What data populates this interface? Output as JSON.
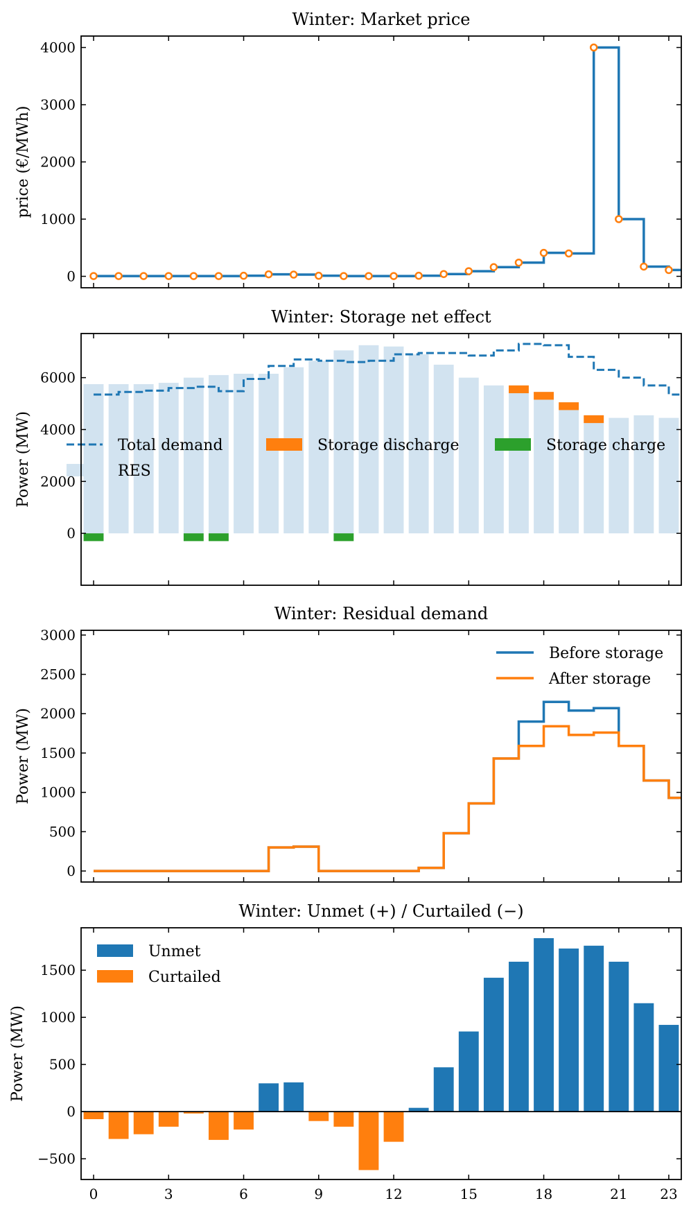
{
  "colors": {
    "blue": "#1f77b4",
    "orange": "#ff7f0e",
    "green": "#2ca02c",
    "res": "#d2e3f0"
  },
  "xticks": [
    0,
    3,
    6,
    9,
    12,
    15,
    18,
    21,
    23
  ],
  "chart_data": [
    {
      "type": "line",
      "title": "Winter: Market price",
      "xlabel": "",
      "ylabel": "price (€/MWh)",
      "xlim": [
        -0.5,
        23.5
      ],
      "ylim": [
        -200,
        4200
      ],
      "yticks": [
        0,
        1000,
        2000,
        3000,
        4000
      ],
      "grid": false,
      "step": "post",
      "x": [
        0,
        1,
        2,
        3,
        4,
        5,
        6,
        7,
        8,
        9,
        10,
        11,
        12,
        13,
        14,
        15,
        16,
        17,
        18,
        19,
        20,
        21,
        22,
        23
      ],
      "series": [
        {
          "values": [
            5,
            5,
            5,
            5,
            5,
            5,
            10,
            35,
            30,
            10,
            5,
            5,
            5,
            10,
            40,
            90,
            160,
            240,
            410,
            400,
            4000,
            1000,
            170,
            110
          ]
        }
      ]
    },
    {
      "type": "bar",
      "title": "Winter: Storage net effect",
      "xlabel": "",
      "ylabel": "Power (MW)",
      "xlim": [
        -0.5,
        23.5
      ],
      "ylim": [
        -2000,
        7700
      ],
      "yticks": [
        0,
        2000,
        4000,
        6000
      ],
      "grid": false,
      "legend": "center",
      "x": [
        0,
        1,
        2,
        3,
        4,
        5,
        6,
        7,
        8,
        9,
        10,
        11,
        12,
        13,
        14,
        15,
        16,
        17,
        18,
        19,
        20,
        21,
        22,
        23
      ],
      "series": [
        {
          "name": "Total demand",
          "style": "dashed-step",
          "values": [
            5350,
            5450,
            5500,
            5600,
            5650,
            5480,
            5950,
            6450,
            6700,
            6650,
            6600,
            6650,
            6900,
            6950,
            6950,
            6850,
            7050,
            7300,
            7250,
            6800,
            6300,
            6000,
            5700,
            5350
          ]
        },
        {
          "name": "Storage discharge",
          "segments": [
            [
              17,
              5400,
              5700
            ],
            [
              18,
              5150,
              5450
            ],
            [
              19,
              4750,
              5050
            ],
            [
              20,
              4250,
              4550
            ]
          ]
        },
        {
          "name": "Storage charge",
          "values": [
            -300,
            0,
            0,
            0,
            -300,
            -300,
            0,
            0,
            0,
            0,
            -300,
            0,
            0,
            0,
            0,
            0,
            0,
            0,
            0,
            0,
            0,
            0,
            0,
            0
          ]
        },
        {
          "name": "RES",
          "values": [
            5750,
            5750,
            5750,
            5800,
            6000,
            6100,
            6150,
            6150,
            6400,
            6650,
            7050,
            7250,
            7200,
            6900,
            6500,
            6000,
            5700,
            5700,
            5450,
            5050,
            4550,
            4450,
            4550,
            4450
          ]
        }
      ]
    },
    {
      "type": "line",
      "title": "Winter: Residual demand",
      "xlabel": "",
      "ylabel": "Power (MW)",
      "xlim": [
        -0.5,
        23.5
      ],
      "ylim": [
        -140,
        3060
      ],
      "yticks": [
        0,
        500,
        1000,
        1500,
        2000,
        2500,
        3000
      ],
      "grid": false,
      "legend": "top-right",
      "step": "post",
      "x": [
        0,
        1,
        2,
        3,
        4,
        5,
        6,
        7,
        8,
        9,
        10,
        11,
        12,
        13,
        14,
        15,
        16,
        17,
        18,
        19,
        20,
        21,
        22,
        23
      ],
      "series": [
        {
          "name": "Before storage",
          "values": [
            0,
            0,
            0,
            0,
            0,
            0,
            0,
            300,
            310,
            0,
            0,
            0,
            0,
            40,
            480,
            860,
            1430,
            1900,
            2150,
            2040,
            2070,
            1590,
            1150,
            930
          ]
        },
        {
          "name": "After storage",
          "values": [
            0,
            0,
            0,
            0,
            0,
            0,
            0,
            300,
            310,
            0,
            0,
            0,
            0,
            40,
            480,
            860,
            1430,
            1590,
            1840,
            1730,
            1760,
            1590,
            1150,
            930
          ]
        }
      ]
    },
    {
      "type": "bar",
      "title": "Winter: Unmet (+) / Curtailed (−)",
      "xlabel": "",
      "ylabel": "Power (MW)",
      "xlim": [
        -0.5,
        23.5
      ],
      "ylim": [
        -720,
        1950
      ],
      "yticks": [
        -500,
        0,
        500,
        1000,
        1500
      ],
      "grid": false,
      "legend": "top-left",
      "x": [
        0,
        1,
        2,
        3,
        4,
        5,
        6,
        7,
        8,
        9,
        10,
        11,
        12,
        13,
        14,
        15,
        16,
        17,
        18,
        19,
        20,
        21,
        22,
        23
      ],
      "series": [
        {
          "name": "Unmet",
          "values": [
            0,
            0,
            0,
            0,
            0,
            0,
            0,
            300,
            310,
            0,
            0,
            0,
            0,
            40,
            470,
            850,
            1420,
            1590,
            1840,
            1730,
            1760,
            1590,
            1150,
            920
          ]
        },
        {
          "name": "Curtailed",
          "values": [
            -80,
            -290,
            -240,
            -160,
            -20,
            -300,
            -190,
            0,
            0,
            -100,
            -160,
            -620,
            -320,
            0,
            0,
            0,
            0,
            0,
            0,
            0,
            0,
            0,
            0,
            0
          ]
        }
      ]
    }
  ]
}
